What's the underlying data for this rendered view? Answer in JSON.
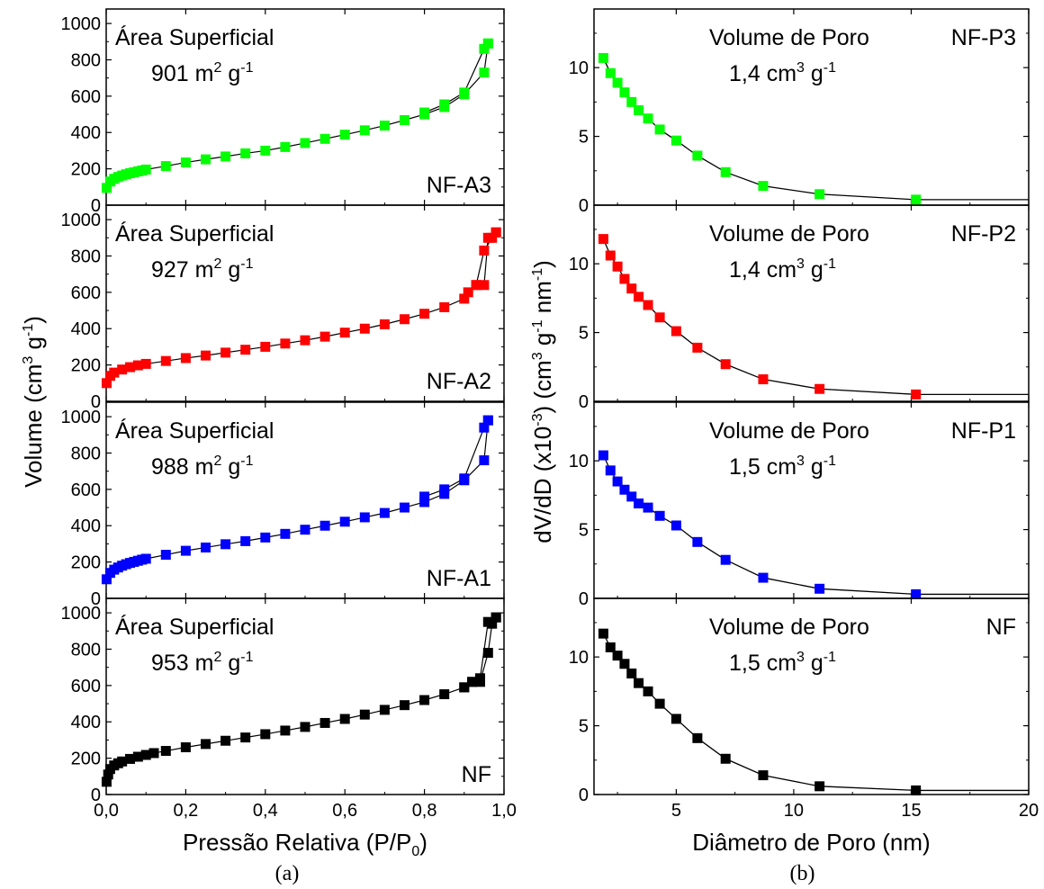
{
  "chart_data": [
    {
      "id": "a",
      "type": "scatter",
      "caption": "(a)",
      "xlabel": "Pressão Relativa (P/P0)",
      "ylabel": "Volume (cm3 g-1)",
      "xlim": [
        0.0,
        1.0
      ],
      "ylim": [
        0,
        1050
      ],
      "x_ticks": [
        "0,0",
        "0,2",
        "0,4",
        "0,6",
        "0,8",
        "1,0"
      ],
      "y_ticks": [
        "0",
        "200",
        "400",
        "600",
        "800",
        "1000"
      ],
      "panels": [
        {
          "sample": "NF-A3",
          "color": "#00ff00",
          "title": "Área Superficial",
          "value_text": "901 m2 g-1",
          "value_number": "901",
          "adsorption": {
            "x": [
              0.001,
              0.01,
              0.02,
              0.03,
              0.04,
              0.05,
              0.06,
              0.07,
              0.08,
              0.09,
              0.1,
              0.15,
              0.2,
              0.25,
              0.3,
              0.35,
              0.4,
              0.45,
              0.5,
              0.55,
              0.6,
              0.65,
              0.7,
              0.75,
              0.8,
              0.85,
              0.9,
              0.95,
              0.96
            ],
            "y": [
              95,
              130,
              145,
              155,
              163,
              170,
              176,
              181,
              186,
              191,
              196,
              215,
              235,
              252,
              268,
              285,
              300,
              320,
              342,
              365,
              388,
              412,
              438,
              468,
              500,
              540,
              610,
              730,
              890
            ]
          },
          "desorption": {
            "x": [
              0.96,
              0.95,
              0.9,
              0.85,
              0.8
            ],
            "y": [
              890,
              860,
              620,
              555,
              510
            ]
          }
        },
        {
          "sample": "NF-A2",
          "color": "#ff0000",
          "title": "Área Superficial",
          "value_text": "927 m2 g-1",
          "value_number": "927",
          "adsorption": {
            "x": [
              0.001,
              0.01,
              0.02,
              0.04,
              0.06,
              0.08,
              0.1,
              0.15,
              0.2,
              0.25,
              0.3,
              0.35,
              0.4,
              0.45,
              0.5,
              0.55,
              0.6,
              0.65,
              0.7,
              0.75,
              0.8,
              0.85,
              0.9,
              0.93,
              0.95,
              0.97,
              0.98
            ],
            "y": [
              100,
              140,
              158,
              175,
              188,
              198,
              206,
              222,
              238,
              252,
              268,
              284,
              300,
              318,
              336,
              356,
              378,
              400,
              424,
              452,
              482,
              518,
              565,
              640,
              830,
              900,
              930
            ]
          },
          "desorption": {
            "x": [
              0.98,
              0.96,
              0.95,
              0.93,
              0.91
            ],
            "y": [
              930,
              900,
              640,
              640,
              600
            ]
          }
        },
        {
          "sample": "NF-A1",
          "color": "#0000ff",
          "title": "Área Superficial",
          "value_text": "988 m2 g-1",
          "value_number": "988",
          "adsorption": {
            "x": [
              0.001,
              0.01,
              0.02,
              0.03,
              0.04,
              0.05,
              0.06,
              0.07,
              0.08,
              0.09,
              0.1,
              0.15,
              0.2,
              0.25,
              0.3,
              0.35,
              0.4,
              0.45,
              0.5,
              0.55,
              0.6,
              0.65,
              0.7,
              0.75,
              0.8,
              0.85,
              0.9,
              0.95,
              0.96
            ],
            "y": [
              105,
              140,
              158,
              170,
              180,
              188,
              195,
              201,
              207,
              213,
              218,
              240,
              262,
              280,
              298,
              315,
              335,
              355,
              378,
              400,
              422,
              446,
              470,
              500,
              530,
              575,
              650,
              760,
              980
            ]
          },
          "desorption": {
            "x": [
              0.96,
              0.95,
              0.9,
              0.85,
              0.8
            ],
            "y": [
              980,
              940,
              660,
              600,
              560
            ]
          }
        },
        {
          "sample": "NF",
          "color": "#000000",
          "title": "Área Superficial",
          "value_text": "953 m2 g-1",
          "value_number": "953",
          "adsorption": {
            "x": [
              0.001,
              0.005,
              0.01,
              0.02,
              0.03,
              0.04,
              0.06,
              0.08,
              0.1,
              0.12,
              0.15,
              0.2,
              0.25,
              0.3,
              0.35,
              0.4,
              0.45,
              0.5,
              0.55,
              0.6,
              0.65,
              0.7,
              0.75,
              0.8,
              0.85,
              0.9,
              0.92,
              0.94,
              0.96,
              0.97,
              0.98
            ],
            "y": [
              70,
              110,
              140,
              160,
              172,
              182,
              196,
              208,
              218,
              228,
              240,
              260,
              278,
              296,
              314,
              332,
              352,
              372,
              394,
              416,
              440,
              466,
              492,
              520,
              552,
              590,
              620,
              620,
              780,
              940,
              975
            ]
          },
          "desorption": {
            "x": [
              0.98,
              0.96,
              0.94,
              0.92,
              0.9
            ],
            "y": [
              975,
              950,
              640,
              620,
              590
            ]
          }
        }
      ]
    },
    {
      "id": "b",
      "type": "line",
      "caption": "(b)",
      "xlabel": "Diâmetro de Poro (nm)",
      "ylabel": "dV/dD (x10-3) (cm3 g-1 nm-1)",
      "xlim": [
        1.5,
        20
      ],
      "ylim": [
        0,
        14
      ],
      "x_ticks": [
        "5",
        "10",
        "15",
        "20"
      ],
      "y_ticks": [
        "0",
        "5",
        "10"
      ],
      "panels": [
        {
          "sample": "NF-P3",
          "color": "#00ff00",
          "title": "Volume de Poro",
          "value_text": "1,4 cm3 g-1",
          "value_number": "1,4",
          "x": [
            1.9,
            2.2,
            2.5,
            2.8,
            3.1,
            3.4,
            3.8,
            4.3,
            5.0,
            5.9,
            7.1,
            8.7,
            11.1,
            15.2,
            20.0
          ],
          "y": [
            10.7,
            9.6,
            8.9,
            8.2,
            7.5,
            6.9,
            6.3,
            5.5,
            4.7,
            3.6,
            2.4,
            1.4,
            0.8,
            0.4,
            0.4
          ],
          "markers": 14
        },
        {
          "sample": "NF-P2",
          "color": "#ff0000",
          "title": "Volume de Poro",
          "value_text": "1,4 cm3 g-1",
          "value_number": "1,4",
          "x": [
            1.9,
            2.2,
            2.5,
            2.8,
            3.1,
            3.4,
            3.8,
            4.3,
            5.0,
            5.9,
            7.1,
            8.7,
            11.1,
            15.2,
            20.0
          ],
          "y": [
            11.8,
            10.6,
            9.8,
            8.9,
            8.2,
            7.6,
            7.0,
            6.1,
            5.1,
            3.9,
            2.7,
            1.6,
            0.9,
            0.5,
            0.5
          ],
          "markers": 14
        },
        {
          "sample": "NF-P1",
          "color": "#0000ff",
          "title": "Volume de Poro",
          "value_text": "1,5 cm3 g-1",
          "value_number": "1,5",
          "x": [
            1.9,
            2.2,
            2.5,
            2.8,
            3.1,
            3.4,
            3.8,
            4.3,
            5.0,
            5.9,
            7.1,
            8.7,
            11.1,
            15.2,
            20.0
          ],
          "y": [
            10.4,
            9.3,
            8.5,
            7.9,
            7.4,
            6.9,
            6.6,
            6.0,
            5.3,
            4.1,
            2.8,
            1.5,
            0.7,
            0.3,
            0.3
          ],
          "markers": 14
        },
        {
          "sample": "NF",
          "color": "#000000",
          "title": "Volume de Poro",
          "value_text": "1,5 cm3 g-1",
          "value_number": "1,5",
          "x": [
            1.9,
            2.2,
            2.5,
            2.8,
            3.1,
            3.4,
            3.8,
            4.3,
            5.0,
            5.9,
            7.1,
            8.7,
            11.1,
            15.2,
            20.0
          ],
          "y": [
            11.7,
            10.7,
            10.1,
            9.5,
            8.8,
            8.1,
            7.5,
            6.6,
            5.5,
            4.1,
            2.6,
            1.4,
            0.6,
            0.3,
            0.3
          ],
          "markers": 14
        }
      ]
    }
  ]
}
